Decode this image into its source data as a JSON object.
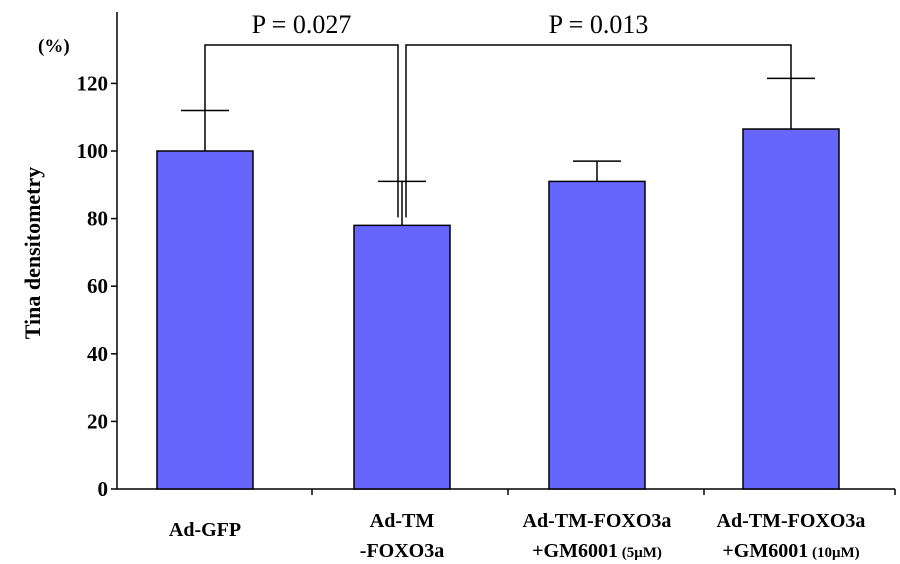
{
  "chart_data": {
    "type": "bar",
    "unit_label": "(%)",
    "ylabel": "Tina densitometry",
    "xlabel": "",
    "ylim": [
      0,
      120
    ],
    "yticks": [
      0,
      20,
      40,
      60,
      80,
      100,
      120
    ],
    "grid": false,
    "categories": [
      {
        "line1": "Ad-GFP",
        "line2": "",
        "line2_small": ""
      },
      {
        "line1": "Ad-TM",
        "line2": "-FOXO3a",
        "line2_small": ""
      },
      {
        "line1": "Ad-TM-FOXO3a",
        "line2": "+GM6001",
        "line2_small": "(5μM)"
      },
      {
        "line1": "Ad-TM-FOXO3a",
        "line2": "+GM6001",
        "line2_small": "(10μM)"
      }
    ],
    "values": [
      100,
      78,
      91,
      106.5
    ],
    "error_upper": [
      12,
      13,
      6,
      15
    ],
    "bar_color": "#6666ff",
    "significance": [
      {
        "from": 0,
        "to": 1,
        "label": "P = 0.027"
      },
      {
        "from": 1,
        "to": 3,
        "label": "P = 0.013"
      }
    ]
  }
}
